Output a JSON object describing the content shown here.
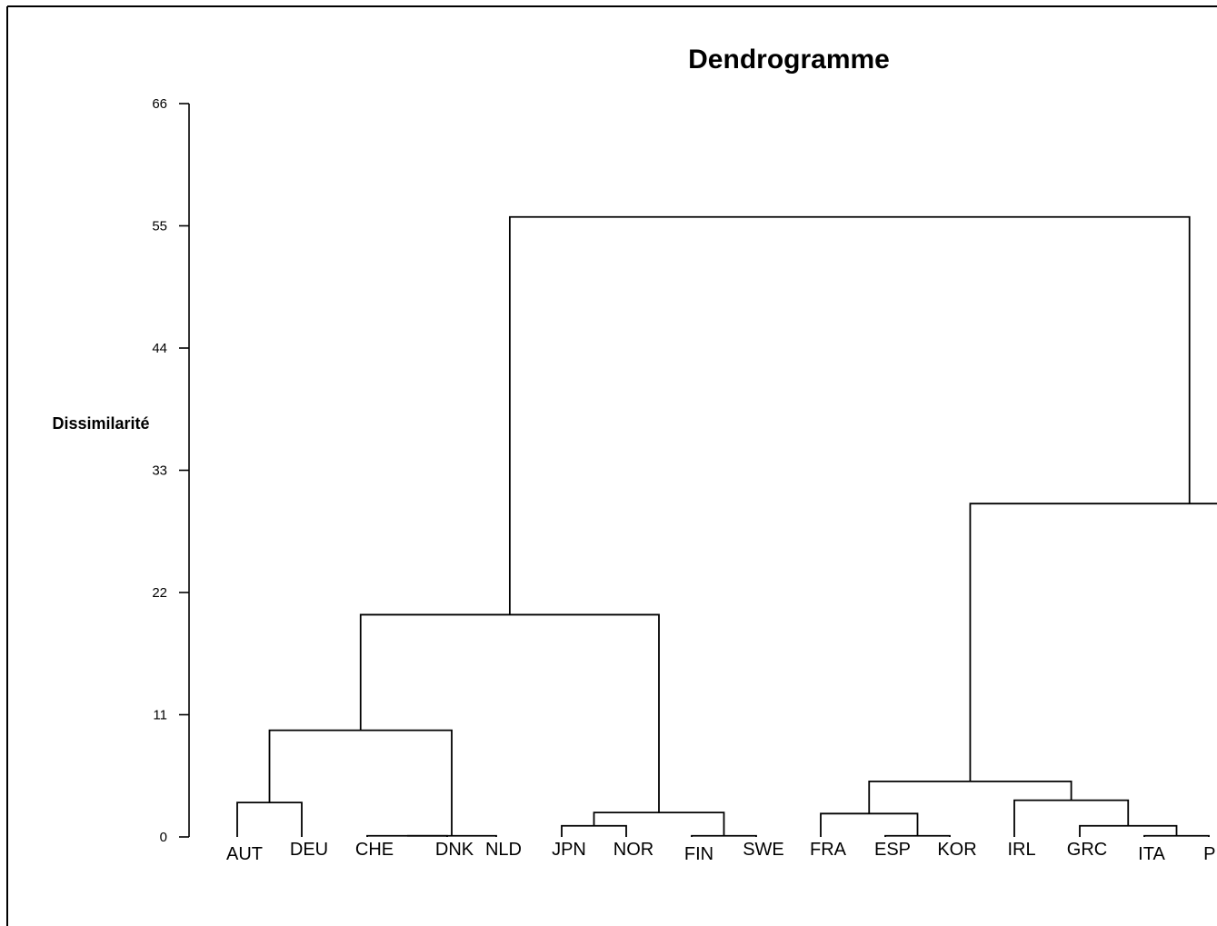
{
  "chart_data": {
    "type": "dendrogram",
    "title": "Dendrogramme",
    "ylabel": "Dissimilarité",
    "xlabel": "",
    "ylim": [
      0,
      66
    ],
    "yticks": [
      0,
      11,
      22,
      33,
      44,
      55,
      66
    ],
    "ytick_labels": [
      "0",
      "11",
      "22",
      "33",
      "44",
      "55",
      "66"
    ],
    "leaves": [
      "AUT",
      "DEU",
      "CHE",
      "DNK",
      "NLD",
      "JPN",
      "NOR",
      "FIN",
      "SWE",
      "FRA",
      "ESP",
      "KOR",
      "IRL",
      "GRC",
      "ITA",
      "PRT"
    ],
    "visible_leaf_labels": [
      "AUT",
      "DEU",
      "CHE",
      "DNK",
      "NLD",
      "JPN",
      "NOR",
      "FIN",
      "SWE",
      "FRA",
      "ESP",
      "KOR",
      "IRL",
      "GRC",
      "ITA",
      "PR"
    ],
    "merges": [
      {
        "id": "m1",
        "left": "CHE",
        "right": "DNK",
        "height": 0.1
      },
      {
        "id": "m2",
        "left": "m1",
        "right": "NLD",
        "height": 0.1
      },
      {
        "id": "m3",
        "left": "FIN",
        "right": "SWE",
        "height": 0.1
      },
      {
        "id": "m4",
        "left": "ESP",
        "right": "KOR",
        "height": 0.1
      },
      {
        "id": "m5",
        "left": "ITA",
        "right": "PRT",
        "height": 0.1
      },
      {
        "id": "m6",
        "left": "JPN",
        "right": "NOR",
        "height": 1.0
      },
      {
        "id": "m7",
        "left": "GRC",
        "right": "m5",
        "height": 1.0
      },
      {
        "id": "m8",
        "left": "m6",
        "right": "m3",
        "height": 2.2
      },
      {
        "id": "m9",
        "left": "FRA",
        "right": "m4",
        "height": 2.1
      },
      {
        "id": "m10",
        "left": "AUT",
        "right": "DEU",
        "height": 3.1
      },
      {
        "id": "m11",
        "left": "IRL",
        "right": "m7",
        "height": 3.3
      },
      {
        "id": "m12",
        "left": "m9",
        "right": "m11",
        "height": 5.0
      },
      {
        "id": "m13",
        "left": "m10",
        "right": "m2",
        "height": 9.6
      },
      {
        "id": "m14",
        "left": "m13",
        "right": "m8",
        "height": 20.0
      },
      {
        "id": "m15",
        "left": "m12",
        "right": "PRT_group_placeholder",
        "height": 30.0
      },
      {
        "id": "m16",
        "left": "m14",
        "right": "m15",
        "height": 55.8
      }
    ]
  }
}
